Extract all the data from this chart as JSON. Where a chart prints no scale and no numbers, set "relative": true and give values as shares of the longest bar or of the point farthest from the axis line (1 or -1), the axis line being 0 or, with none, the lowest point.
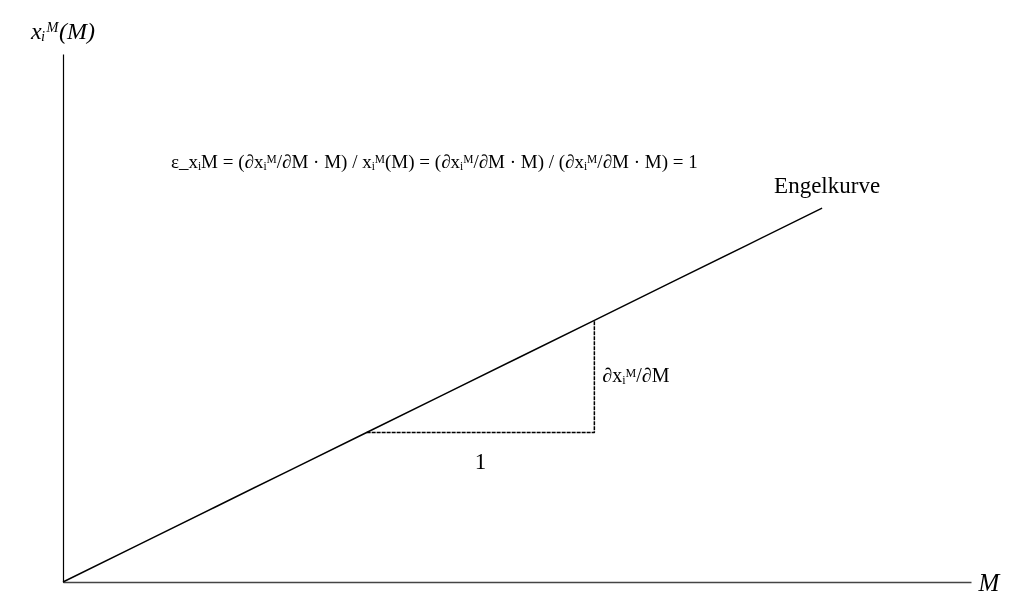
{
  "chart_data": {
    "type": "line",
    "relative": true,
    "tick_labels": false,
    "xlabel": "M",
    "categories": [
      null,
      null,
      null,
      null,
      null,
      null,
      null,
      null,
      null,
      null,
      null
    ],
    "series": [
      {
        "name": "Engelkurve",
        "color": "#000000",
        "values": [
          0,
          0.1,
          0.2,
          0.3,
          0.4,
          0.5,
          0.6,
          0.7,
          0.8,
          0.9,
          1.0
        ]
      },
      {
        "type": "step",
        "color": "#000000",
        "line_style": "dashed",
        "values": [
          null,
          null,
          null,
          null,
          0.4,
          0.4,
          0.4,
          0.7,
          null,
          null,
          null
        ]
      }
    ],
    "annotations": [
      "xᵢᴹ(M)",
      "ε_xᵢM = (∂xᵢᴹ/∂M · M) / xᵢᴹ(M) = (∂xᵢᴹ/∂M · M) / (∂xᵢᴹ/∂M · M) = 1",
      "1",
      "∂xᵢᴹ/∂M"
    ]
  }
}
